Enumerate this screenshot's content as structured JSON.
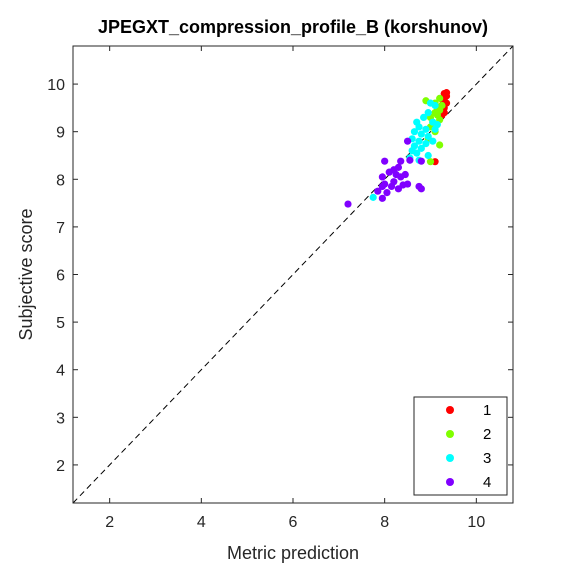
{
  "chart_data": {
    "type": "scatter",
    "title": "JPEGXT_compression_profile_B (korshunov)",
    "xlabel": "Metric prediction",
    "ylabel": "Subjective score",
    "xlim": [
      1.2,
      10.8
    ],
    "ylim": [
      1.2,
      10.8
    ],
    "xticks": [
      2,
      4,
      6,
      8,
      10
    ],
    "yticks": [
      2,
      3,
      4,
      5,
      6,
      7,
      8,
      9,
      10
    ],
    "grid": false,
    "legend_position": "bottom-right",
    "diagonal_reference": true,
    "series": [
      {
        "name": "1",
        "color": "#ff0000",
        "points": [
          [
            9.3,
            9.8
          ],
          [
            9.35,
            9.75
          ],
          [
            9.25,
            9.7
          ],
          [
            9.3,
            9.65
          ],
          [
            9.35,
            9.6
          ],
          [
            9.25,
            9.55
          ],
          [
            9.3,
            9.5
          ],
          [
            9.2,
            9.45
          ],
          [
            9.3,
            9.4
          ],
          [
            9.25,
            9.35
          ],
          [
            9.35,
            9.82
          ],
          [
            9.28,
            9.6
          ],
          [
            9.1,
            8.37
          ]
        ]
      },
      {
        "name": "2",
        "color": "#80ff00",
        "points": [
          [
            8.9,
            9.65
          ],
          [
            9.2,
            9.7
          ],
          [
            9.1,
            9.6
          ],
          [
            9.15,
            9.5
          ],
          [
            9.2,
            9.45
          ],
          [
            9.1,
            9.4
          ],
          [
            9.0,
            9.3
          ],
          [
            9.15,
            9.35
          ],
          [
            9.2,
            9.25
          ],
          [
            9.05,
            9.2
          ],
          [
            9.0,
            9.1
          ],
          [
            9.1,
            9.0
          ],
          [
            8.95,
            8.85
          ],
          [
            9.2,
            8.72
          ],
          [
            9.0,
            8.37
          ],
          [
            9.25,
            9.55
          ]
        ]
      },
      {
        "name": "3",
        "color": "#00ffff",
        "points": [
          [
            9.0,
            9.6
          ],
          [
            9.1,
            9.55
          ],
          [
            8.95,
            9.4
          ],
          [
            8.85,
            9.3
          ],
          [
            8.7,
            9.2
          ],
          [
            9.05,
            9.2
          ],
          [
            9.15,
            9.15
          ],
          [
            8.75,
            9.1
          ],
          [
            8.9,
            9.05
          ],
          [
            9.1,
            9.05
          ],
          [
            8.65,
            9.0
          ],
          [
            8.8,
            8.95
          ],
          [
            8.95,
            8.9
          ],
          [
            8.6,
            8.85
          ],
          [
            8.75,
            8.8
          ],
          [
            8.9,
            8.75
          ],
          [
            8.65,
            8.7
          ],
          [
            8.8,
            8.65
          ],
          [
            8.6,
            8.6
          ],
          [
            8.7,
            8.55
          ],
          [
            8.55,
            8.45
          ],
          [
            8.75,
            8.4
          ],
          [
            8.95,
            8.5
          ],
          [
            9.05,
            8.8
          ],
          [
            7.75,
            7.62
          ]
        ]
      },
      {
        "name": "4",
        "color": "#8000ff",
        "points": [
          [
            7.2,
            7.48
          ],
          [
            7.95,
            7.6
          ],
          [
            7.85,
            7.75
          ],
          [
            8.05,
            7.72
          ],
          [
            8.15,
            7.85
          ],
          [
            8.2,
            7.95
          ],
          [
            8.3,
            7.8
          ],
          [
            8.4,
            7.88
          ],
          [
            8.0,
            7.9
          ],
          [
            8.25,
            8.1
          ],
          [
            8.1,
            8.15
          ],
          [
            8.35,
            8.05
          ],
          [
            8.5,
            7.9
          ],
          [
            8.75,
            7.85
          ],
          [
            8.8,
            7.8
          ],
          [
            8.45,
            8.1
          ],
          [
            8.0,
            8.38
          ],
          [
            8.3,
            8.25
          ],
          [
            8.55,
            8.4
          ],
          [
            8.8,
            8.38
          ],
          [
            8.35,
            8.38
          ],
          [
            8.5,
            8.8
          ],
          [
            7.95,
            8.05
          ],
          [
            8.2,
            8.2
          ],
          [
            7.95,
            7.85
          ]
        ]
      }
    ]
  }
}
